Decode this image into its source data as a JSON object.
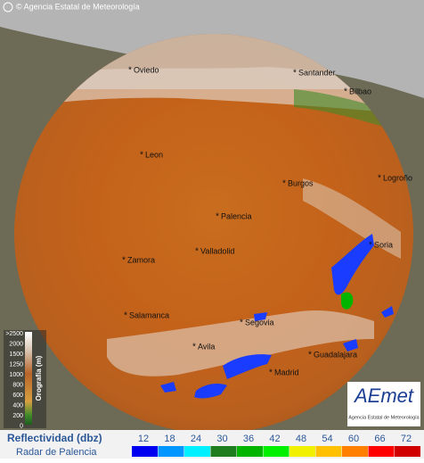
{
  "copyright": "© Agencia Estatal de Meteorología",
  "cities": [
    "Oviedo",
    "Santander",
    "Bilbao",
    "Leon",
    "Burgos",
    "Logroño",
    "Palencia",
    "Soria",
    "Zamora",
    "Valladolid",
    "Salamanca",
    "Segovia",
    "Avila",
    "Guadalajara",
    "Madrid"
  ],
  "orography_legend": {
    "title": "Orografía (m)",
    "labels": [
      ">2500",
      "2000",
      "1500",
      "1250",
      "1000",
      "800",
      "600",
      "400",
      "200",
      "0"
    ]
  },
  "logo": {
    "name": "AEmet",
    "caption": "Agencia Estatal de Meteorología"
  },
  "legend": {
    "title": "Reflectividad (dbz)",
    "subtitle": "Radar de Palencia",
    "values": [
      12,
      18,
      24,
      30,
      36,
      42,
      48,
      54,
      60,
      66,
      72
    ],
    "colors": [
      "#0000f0",
      "#0096ff",
      "#00f0ff",
      "#1e7d1e",
      "#00b400",
      "#00f000",
      "#f0f000",
      "#ffc000",
      "#ff8000",
      "#ff0000",
      "#d00000"
    ]
  }
}
